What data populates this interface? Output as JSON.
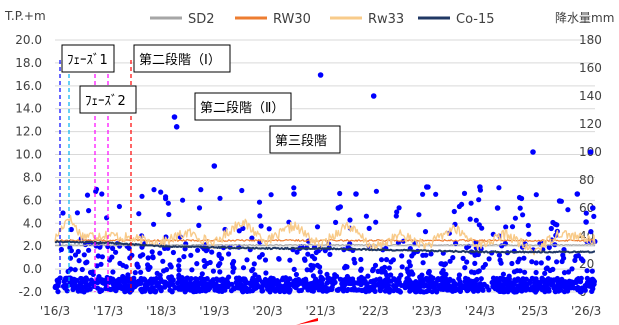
{
  "chart_data": {
    "type": "line",
    "title": "",
    "ylabel_left": "T.P.+m",
    "ylabel_right": "降水量mm",
    "ylim_left": [
      -2.0,
      20.0
    ],
    "ylim_right": [
      0,
      180
    ],
    "y_ticks_left": [
      "20.0",
      "18.0",
      "16.0",
      "14.0",
      "12.0",
      "10.0",
      "8.0",
      "6.0",
      "4.0",
      "2.0",
      "0.0",
      "-2.0"
    ],
    "y_ticks_right": [
      "180",
      "160",
      "140",
      "120",
      "100",
      "80",
      "60",
      "40",
      "20",
      "0"
    ],
    "x_ticks": [
      "'16/3",
      "'17/3",
      "'18/3",
      "'19/3",
      "'20/3",
      "'21/3",
      "'22/3",
      "'23/3",
      "'24/3",
      "'25/3",
      "'26/3"
    ],
    "x_range_months": [
      0,
      122
    ],
    "legend_position": "top",
    "series": [
      {
        "name": "SD2",
        "color": "#a6a6a6",
        "values_approx": [
          [
            0,
            2.1
          ],
          [
            122,
            2.1
          ]
        ]
      },
      {
        "name": "RW30",
        "color": "#ed7d31",
        "values_approx": [
          [
            0,
            2.5
          ],
          [
            122,
            2.5
          ]
        ]
      },
      {
        "name": "Rw33",
        "color": "#f8cb8a",
        "values_approx": [
          [
            0,
            2.6
          ],
          [
            3,
            4.6
          ],
          [
            6,
            2.9
          ],
          [
            12,
            3.0
          ],
          [
            18,
            2.6
          ],
          [
            24,
            2.3
          ],
          [
            30,
            3.2
          ],
          [
            36,
            2.2
          ],
          [
            42,
            4.2
          ],
          [
            48,
            2.4
          ],
          [
            54,
            3.8
          ],
          [
            60,
            2.0
          ],
          [
            66,
            3.9
          ],
          [
            72,
            1.8
          ],
          [
            78,
            3.0
          ],
          [
            84,
            2.0
          ],
          [
            90,
            3.6
          ],
          [
            96,
            2.0
          ],
          [
            102,
            3.1
          ],
          [
            108,
            1.5
          ],
          [
            114,
            3.2
          ],
          [
            120,
            2.6
          ],
          [
            122,
            2.5
          ]
        ]
      },
      {
        "name": "Co-15",
        "color": "#203864",
        "values_approx": [
          [
            0,
            2.4
          ],
          [
            12,
            2.3
          ],
          [
            24,
            2.0
          ],
          [
            36,
            1.9
          ],
          [
            48,
            1.8
          ],
          [
            60,
            1.8
          ],
          [
            72,
            1.7
          ],
          [
            84,
            1.6
          ],
          [
            96,
            1.5
          ],
          [
            108,
            1.5
          ],
          [
            122,
            1.5
          ]
        ]
      },
      {
        "name": "降水量",
        "type": "scatter",
        "color": "#0000ff",
        "points_approx": [
          [
            27,
            125
          ],
          [
            27.5,
            118
          ],
          [
            36,
            90
          ],
          [
            54,
            70
          ],
          [
            60,
            155
          ],
          [
            64,
            60
          ],
          [
            68,
            70
          ],
          [
            72,
            140
          ],
          [
            84,
            75
          ],
          [
            96,
            75
          ],
          [
            100,
            60
          ],
          [
            108,
            100
          ],
          [
            114,
            65
          ],
          [
            118,
            70
          ],
          [
            120,
            50
          ],
          [
            121,
            100
          ],
          [
            121.5,
            60
          ]
        ]
      }
    ],
    "annotations": [
      {
        "text": "ﾌｪｰｽﾞ1",
        "x_month": 1,
        "line_color": "#00b0f0"
      },
      {
        "text": "ﾌｪｰｽﾞ2",
        "x_month": 9,
        "line_color": "#ff00ff"
      },
      {
        "text": "第二段階（Ⅰ）",
        "x_month": 19,
        "line_color": "#ff0000"
      },
      {
        "text": "第二段階（Ⅱ）",
        "x_month": 42
      },
      {
        "text": "第三段階",
        "x_month": 65
      }
    ],
    "grid": "horizontal"
  }
}
